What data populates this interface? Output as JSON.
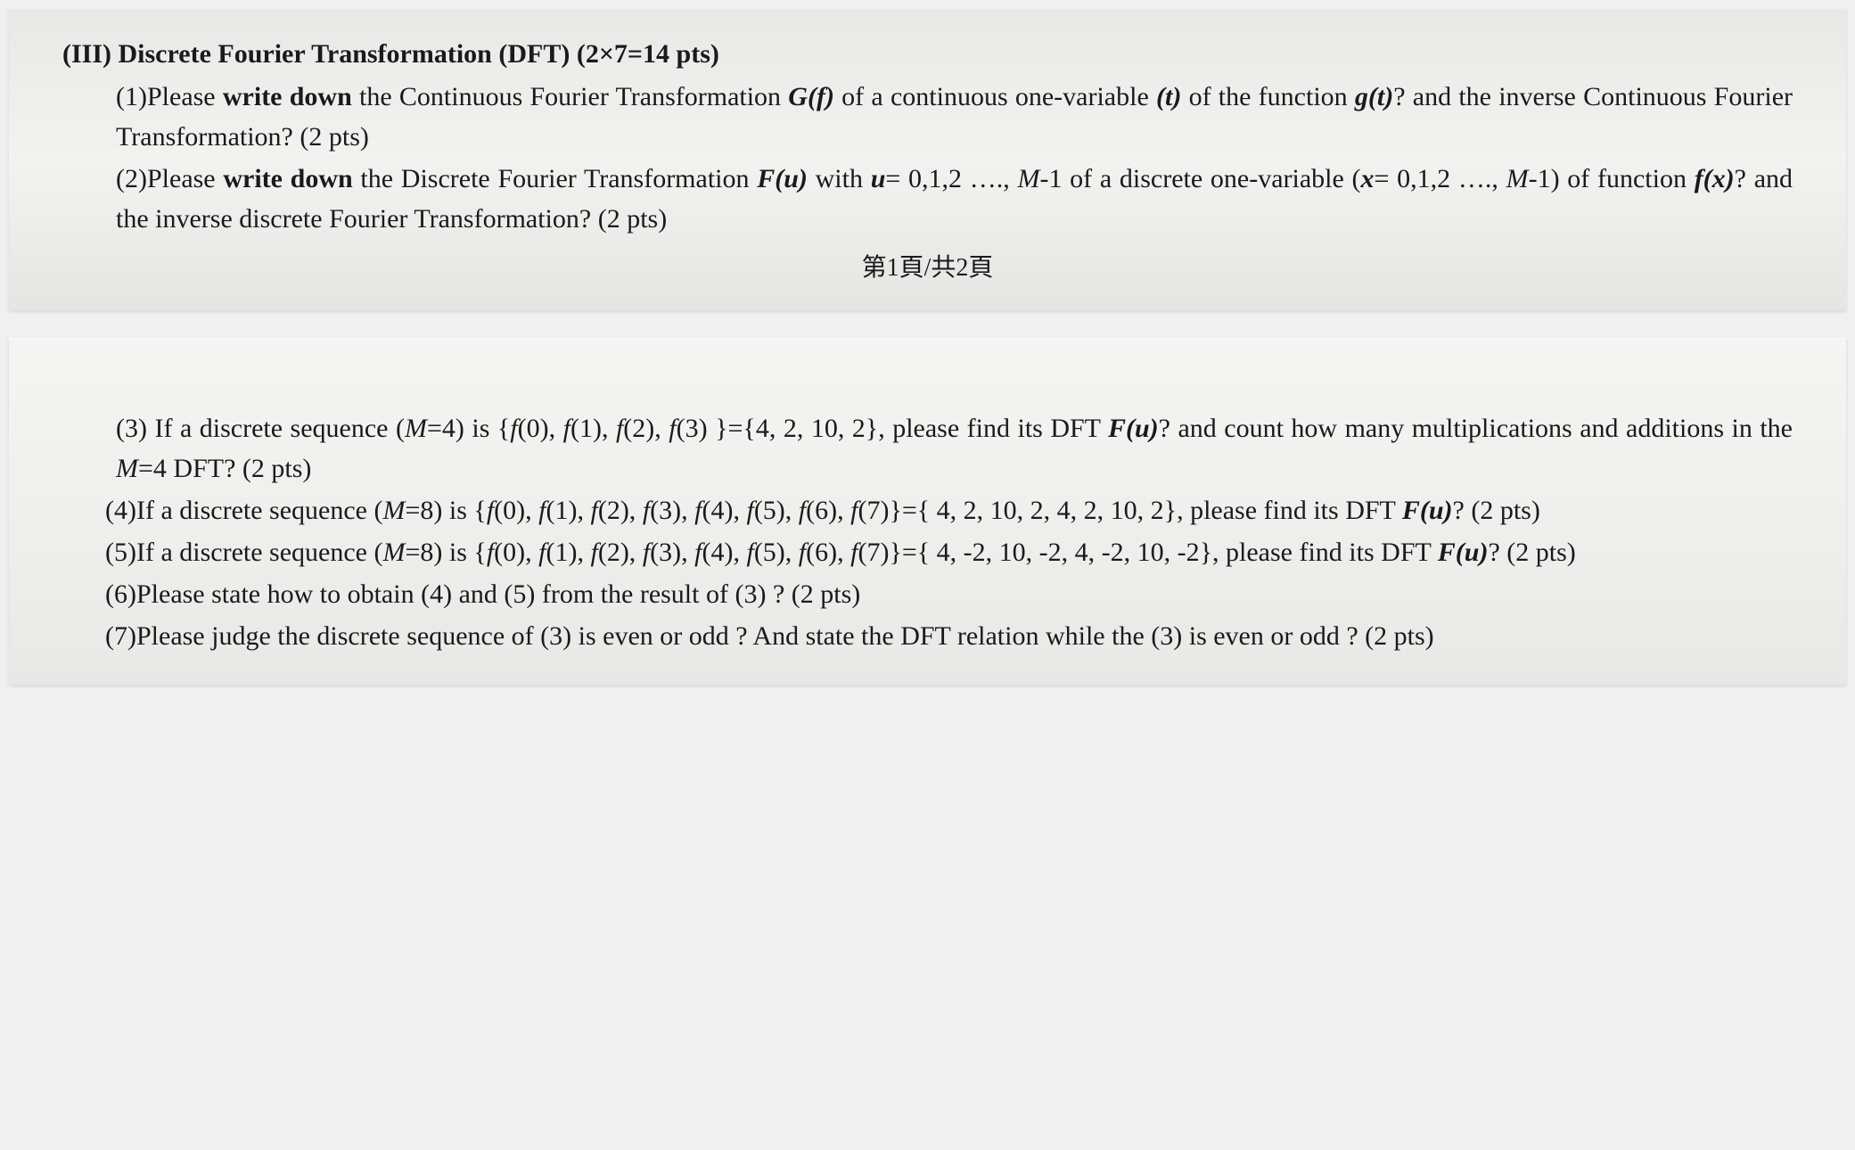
{
  "section1": {
    "header_prefix": "(III) Discrete Fourier Transformation (DFT) (2×7=14 pts)",
    "q1": {
      "number": "(1)",
      "text_part1": "Please ",
      "bold1": "write down",
      "text_part2": " the Continuous Fourier Transformation ",
      "bolditalic1": "G(f)",
      "text_part3": " of a continuous one-variable ",
      "italic1": "(t)",
      "text_part4": " of the function ",
      "bolditalic2": "g(t)",
      "text_part5": "? and the inverse Continuous Fourier Transformation? (2 pts)"
    },
    "q2": {
      "number": "(2)",
      "text_part1": "Please ",
      "bold1": "write down",
      "text_part2": " the Discrete Fourier Transformation ",
      "bolditalic1": "F(u)",
      "text_part3": " with ",
      "bolditalic2": "u",
      "text_part4": "= 0,1,2 …., ",
      "italic1": "M",
      "text_part5": "-1 of a discrete one-variable (",
      "bolditalic3": "x",
      "text_part6": "= 0,1,2 …., ",
      "italic2": "M",
      "text_part7": "-1) of function ",
      "bolditalic4": "f(x)",
      "text_part8": "? and the inverse discrete Fourier Transformation? (2 pts)"
    },
    "page_marker": "第1頁/共2頁"
  },
  "section2": {
    "q3": {
      "number": "(3)",
      "text_part1": " If a discrete sequence (",
      "italic1": "M",
      "text_part2": "=4) is {",
      "italic2": "f",
      "text_part3": "(0), ",
      "italic3": "f",
      "text_part4": "(1), ",
      "italic4": "f",
      "text_part5": "(2), ",
      "italic5": "f",
      "text_part6": "(3) }={4, 2, 10, 2}, please find its DFT ",
      "bolditalic1": "F(u)",
      "text_part7": "? and count how many multiplications and additions in the ",
      "italic6": "M",
      "text_part8": "=4 DFT? (2 pts)"
    },
    "q4": {
      "number": "(4)",
      "text_part1": "If a discrete sequence (",
      "italic1": "M",
      "text_part2": "=8) is {",
      "italic2": "f",
      "text_part3": "(0), ",
      "italic3": "f",
      "text_part4": "(1), ",
      "italic4": "f",
      "text_part5": "(2), ",
      "italic5": "f",
      "text_part6": "(3), ",
      "italic6": "f",
      "text_part7": "(4), ",
      "italic7": "f",
      "text_part8": "(5), ",
      "italic8": "f",
      "text_part9": "(6), ",
      "italic9": "f",
      "text_part10": "(7)}={ 4, 2, 10, 2, 4, 2, 10, 2}, please find its DFT ",
      "bolditalic1": "F(u)",
      "text_part11": "? (2 pts)"
    },
    "q5": {
      "number": "(5)",
      "text_part1": "If a discrete sequence (",
      "italic1": "M",
      "text_part2": "=8) is {",
      "italic2": "f",
      "text_part3": "(0), ",
      "italic3": "f",
      "text_part4": "(1), ",
      "italic4": "f",
      "text_part5": "(2), ",
      "italic5": "f",
      "text_part6": "(3), ",
      "italic6": "f",
      "text_part7": "(4), ",
      "italic7": "f",
      "text_part8": "(5), ",
      "italic8": "f",
      "text_part9": "(6), ",
      "italic9": "f",
      "text_part10": "(7)}={ 4, -2, 10, -2, 4, -2, 10, -2}, please find its DFT ",
      "bolditalic1": "F(u)",
      "text_part11": "? (2 pts)"
    },
    "q6": {
      "number": "(6)",
      "text": "Please state how to obtain (4) and (5) from the result of (3) ? (2 pts)"
    },
    "q7": {
      "number": "(7)",
      "text": "Please judge the discrete sequence of (3) is even or odd ? And state the DFT relation while the (3) is even or odd ? (2 pts)"
    }
  },
  "styling": {
    "text_color": "#1a1a1a",
    "background_gradient_top": "#e8e8e6",
    "background_gradient_bottom": "#e5e5e3",
    "font_family": "Times New Roman",
    "base_font_size": 30,
    "header_font_size": 30,
    "header_font_weight": "bold"
  }
}
